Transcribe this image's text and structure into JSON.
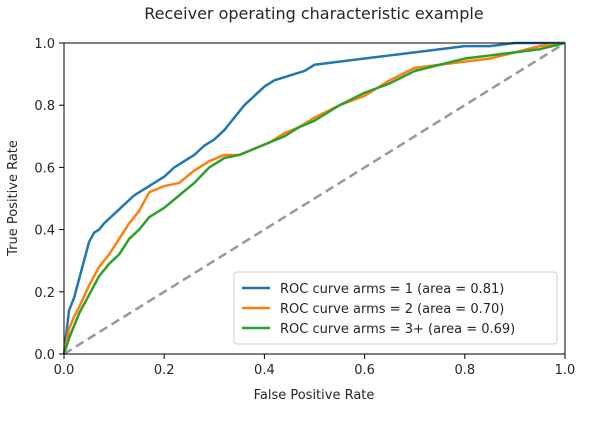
{
  "chart_data": {
    "type": "line",
    "title": "Receiver operating characteristic example",
    "xlabel": "False Positive Rate",
    "ylabel": "True Positive Rate",
    "xlim": [
      0.0,
      1.0
    ],
    "ylim": [
      0.0,
      1.0
    ],
    "xticks": [
      "0.0",
      "0.2",
      "0.4",
      "0.6",
      "0.8",
      "1.0"
    ],
    "yticks": [
      "0.0",
      "0.2",
      "0.4",
      "0.6",
      "0.8",
      "1.0"
    ],
    "grid": false,
    "legend_position": "lower-right",
    "series": [
      {
        "name": "ROC curve arms = 1 (area = 0.81)",
        "color": "#1f77b4",
        "x": [
          0.0,
          0.01,
          0.02,
          0.03,
          0.04,
          0.05,
          0.06,
          0.07,
          0.08,
          0.1,
          0.12,
          0.14,
          0.16,
          0.18,
          0.2,
          0.22,
          0.24,
          0.26,
          0.28,
          0.3,
          0.32,
          0.34,
          0.36,
          0.38,
          0.4,
          0.42,
          0.44,
          0.46,
          0.48,
          0.5,
          0.55,
          0.6,
          0.65,
          0.7,
          0.75,
          0.8,
          0.85,
          0.9,
          0.95,
          1.0
        ],
        "y": [
          0.0,
          0.14,
          0.18,
          0.24,
          0.3,
          0.36,
          0.39,
          0.4,
          0.42,
          0.45,
          0.48,
          0.51,
          0.53,
          0.55,
          0.57,
          0.6,
          0.62,
          0.64,
          0.67,
          0.69,
          0.72,
          0.76,
          0.8,
          0.83,
          0.86,
          0.88,
          0.89,
          0.9,
          0.91,
          0.93,
          0.94,
          0.95,
          0.96,
          0.97,
          0.98,
          0.99,
          0.99,
          1.0,
          1.0,
          1.0
        ]
      },
      {
        "name": "ROC curve arms = 2 (area = 0.70)",
        "color": "#ff7f0e",
        "x": [
          0.0,
          0.01,
          0.02,
          0.03,
          0.05,
          0.07,
          0.09,
          0.11,
          0.13,
          0.15,
          0.17,
          0.2,
          0.23,
          0.26,
          0.29,
          0.32,
          0.35,
          0.38,
          0.41,
          0.44,
          0.47,
          0.5,
          0.55,
          0.6,
          0.65,
          0.7,
          0.75,
          0.8,
          0.85,
          0.9,
          0.95,
          1.0
        ],
        "y": [
          0.0,
          0.08,
          0.12,
          0.15,
          0.22,
          0.28,
          0.32,
          0.37,
          0.42,
          0.46,
          0.52,
          0.54,
          0.55,
          0.59,
          0.62,
          0.64,
          0.64,
          0.66,
          0.68,
          0.71,
          0.73,
          0.76,
          0.8,
          0.83,
          0.88,
          0.92,
          0.93,
          0.94,
          0.95,
          0.97,
          0.99,
          1.0
        ]
      },
      {
        "name": "ROC curve arms = 3+ (area = 0.69)",
        "color": "#2ca02c",
        "x": [
          0.0,
          0.01,
          0.02,
          0.03,
          0.05,
          0.07,
          0.09,
          0.11,
          0.13,
          0.15,
          0.17,
          0.2,
          0.23,
          0.26,
          0.29,
          0.32,
          0.35,
          0.38,
          0.41,
          0.44,
          0.47,
          0.5,
          0.55,
          0.6,
          0.65,
          0.7,
          0.75,
          0.8,
          0.85,
          0.9,
          0.95,
          1.0
        ],
        "y": [
          0.0,
          0.05,
          0.09,
          0.13,
          0.19,
          0.25,
          0.29,
          0.32,
          0.37,
          0.4,
          0.44,
          0.47,
          0.51,
          0.55,
          0.6,
          0.63,
          0.64,
          0.66,
          0.68,
          0.7,
          0.73,
          0.75,
          0.8,
          0.84,
          0.87,
          0.91,
          0.93,
          0.95,
          0.96,
          0.97,
          0.98,
          1.0
        ]
      },
      {
        "name": "",
        "color": "#999999",
        "dashed": true,
        "x": [
          0.0,
          1.0
        ],
        "y": [
          0.0,
          1.0
        ]
      }
    ]
  }
}
